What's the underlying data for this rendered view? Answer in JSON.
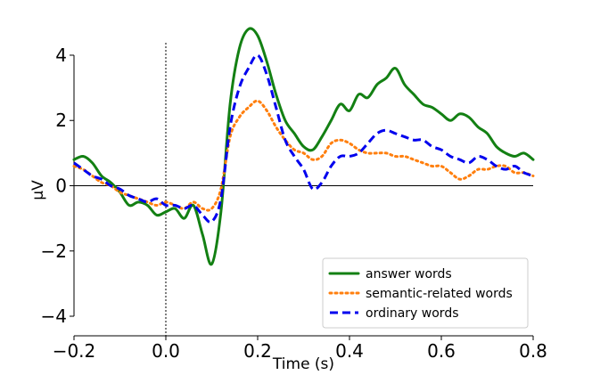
{
  "chart_data": {
    "type": "line",
    "title": "",
    "xlabel": "Time (s)",
    "ylabel": "μV",
    "xlim": [
      -0.2,
      0.8
    ],
    "ylim": [
      -4.6,
      4.6
    ],
    "xticks": [
      -0.2,
      0.0,
      0.2,
      0.4,
      0.6,
      0.8
    ],
    "xtick_labels": [
      "−0.2",
      "0.0",
      "0.2",
      "0.4",
      "0.6",
      "0.8"
    ],
    "yticks": [
      -4,
      -2,
      0,
      2,
      4
    ],
    "ytick_labels": [
      "−4",
      "−2",
      "0",
      "2",
      "4"
    ],
    "zero_line": true,
    "stimulus_onset_line": 0.0,
    "grid": false,
    "legend_position": "lower-right",
    "series": [
      {
        "name": "answer words",
        "color": "#138013",
        "style": "solid",
        "x": [
          -0.2,
          -0.18,
          -0.16,
          -0.14,
          -0.12,
          -0.1,
          -0.08,
          -0.06,
          -0.04,
          -0.02,
          0.0,
          0.02,
          0.04,
          0.06,
          0.08,
          0.1,
          0.12,
          0.14,
          0.16,
          0.18,
          0.2,
          0.22,
          0.24,
          0.26,
          0.28,
          0.3,
          0.32,
          0.34,
          0.36,
          0.38,
          0.4,
          0.42,
          0.44,
          0.46,
          0.48,
          0.5,
          0.52,
          0.54,
          0.56,
          0.58,
          0.6,
          0.62,
          0.64,
          0.66,
          0.68,
          0.7,
          0.72,
          0.74,
          0.76,
          0.78,
          0.8
        ],
        "values": [
          0.8,
          0.9,
          0.7,
          0.3,
          0.1,
          -0.2,
          -0.6,
          -0.5,
          -0.6,
          -0.9,
          -0.8,
          -0.7,
          -1.0,
          -0.6,
          -1.5,
          -2.4,
          -0.8,
          2.5,
          4.2,
          4.8,
          4.6,
          3.8,
          2.8,
          2.0,
          1.6,
          1.2,
          1.1,
          1.5,
          2.0,
          2.5,
          2.3,
          2.8,
          2.7,
          3.1,
          3.3,
          3.6,
          3.1,
          2.8,
          2.5,
          2.4,
          2.2,
          2.0,
          2.2,
          2.1,
          1.8,
          1.6,
          1.2,
          1.0,
          0.9,
          1.0,
          0.8
        ]
      },
      {
        "name": "semantic-related words",
        "color": "#ff7f0e",
        "style": "dotted",
        "x": [
          -0.2,
          -0.18,
          -0.16,
          -0.14,
          -0.12,
          -0.1,
          -0.08,
          -0.06,
          -0.04,
          -0.02,
          0.0,
          0.02,
          0.04,
          0.06,
          0.08,
          0.1,
          0.12,
          0.14,
          0.16,
          0.18,
          0.2,
          0.22,
          0.24,
          0.26,
          0.28,
          0.3,
          0.32,
          0.34,
          0.36,
          0.38,
          0.4,
          0.42,
          0.44,
          0.46,
          0.48,
          0.5,
          0.52,
          0.54,
          0.56,
          0.58,
          0.6,
          0.62,
          0.64,
          0.66,
          0.68,
          0.7,
          0.72,
          0.74,
          0.76,
          0.78,
          0.8
        ],
        "values": [
          0.6,
          0.5,
          0.3,
          0.1,
          0.0,
          -0.2,
          -0.3,
          -0.4,
          -0.5,
          -0.6,
          -0.5,
          -0.6,
          -0.7,
          -0.5,
          -0.7,
          -0.7,
          -0.1,
          1.5,
          2.1,
          2.4,
          2.6,
          2.3,
          1.8,
          1.4,
          1.1,
          1.0,
          0.8,
          0.9,
          1.3,
          1.4,
          1.3,
          1.1,
          1.0,
          1.0,
          1.0,
          0.9,
          0.9,
          0.8,
          0.7,
          0.6,
          0.6,
          0.4,
          0.2,
          0.3,
          0.5,
          0.5,
          0.6,
          0.6,
          0.4,
          0.4,
          0.3
        ]
      },
      {
        "name": "ordinary words",
        "color": "#0000ee",
        "style": "dashed",
        "x": [
          -0.2,
          -0.18,
          -0.16,
          -0.14,
          -0.12,
          -0.1,
          -0.08,
          -0.06,
          -0.04,
          -0.02,
          0.0,
          0.02,
          0.04,
          0.06,
          0.08,
          0.1,
          0.12,
          0.14,
          0.16,
          0.18,
          0.2,
          0.22,
          0.24,
          0.26,
          0.28,
          0.3,
          0.32,
          0.34,
          0.36,
          0.38,
          0.4,
          0.42,
          0.44,
          0.46,
          0.48,
          0.5,
          0.52,
          0.54,
          0.56,
          0.58,
          0.6,
          0.62,
          0.64,
          0.66,
          0.68,
          0.7,
          0.72,
          0.74,
          0.76,
          0.78,
          0.8
        ],
        "values": [
          0.7,
          0.5,
          0.3,
          0.2,
          0.0,
          -0.1,
          -0.3,
          -0.4,
          -0.5,
          -0.4,
          -0.6,
          -0.6,
          -0.7,
          -0.6,
          -0.9,
          -1.1,
          -0.4,
          1.8,
          3.0,
          3.6,
          4.0,
          3.4,
          2.4,
          1.4,
          0.9,
          0.5,
          -0.1,
          0.1,
          0.6,
          0.9,
          0.9,
          1.0,
          1.3,
          1.6,
          1.7,
          1.6,
          1.5,
          1.4,
          1.4,
          1.2,
          1.1,
          0.9,
          0.8,
          0.7,
          0.9,
          0.8,
          0.6,
          0.5,
          0.6,
          0.4,
          0.3
        ]
      }
    ]
  }
}
